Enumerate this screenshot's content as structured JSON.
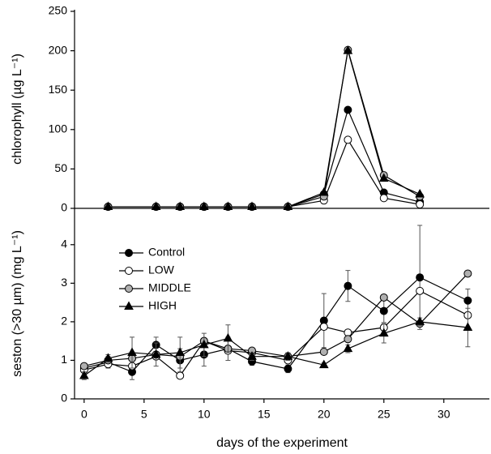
{
  "chart_data": [
    {
      "type": "line",
      "ylabel": "chlorophyll (µg L⁻¹)",
      "x": [
        2,
        6,
        8,
        10,
        12,
        14,
        17,
        20,
        22,
        25,
        28
      ],
      "xlim": [
        -0.8,
        33.8
      ],
      "ylim": [
        0,
        250
      ],
      "yticks": [
        0,
        50,
        100,
        150,
        200,
        250
      ],
      "series": [
        {
          "name": "Control",
          "color": "#000000",
          "marker": "circle",
          "values": [
            2,
            2,
            2,
            2,
            2,
            2,
            2,
            18,
            125,
            20,
            8
          ]
        },
        {
          "name": "LOW",
          "color": "#ffffff",
          "marker": "circle",
          "values": [
            2,
            2,
            2,
            2,
            2,
            2,
            2,
            10,
            87,
            13,
            5
          ]
        },
        {
          "name": "MIDDLE",
          "color": "#b0b0b0",
          "marker": "circle",
          "values": [
            2,
            2,
            2,
            2,
            2,
            2,
            2,
            15,
            201,
            42,
            15
          ]
        },
        {
          "name": "HIGH",
          "color": "#000000",
          "marker": "triangle",
          "values": [
            2,
            2,
            2,
            2,
            2,
            2,
            2,
            20,
            200,
            38,
            18
          ]
        }
      ]
    },
    {
      "type": "line",
      "ylabel": "seston (>30 µm) (mg L⁻¹)",
      "xlabel": "days of the experiment",
      "x": [
        0,
        2,
        4,
        6,
        8,
        10,
        12,
        14,
        17,
        20,
        22,
        25,
        28,
        32
      ],
      "xlim": [
        -0.8,
        33.8
      ],
      "xticks": [
        0,
        5,
        10,
        15,
        20,
        25,
        30
      ],
      "ylim": [
        0,
        4.9
      ],
      "yticks": [
        0,
        1,
        2,
        3,
        4
      ],
      "legend": "upper left",
      "series": [
        {
          "name": "Control",
          "color": "#000000",
          "marker": "circle",
          "values": [
            0.8,
            0.95,
            0.7,
            1.4,
            1.0,
            1.15,
            1.3,
            0.97,
            0.78,
            2.03,
            2.93,
            2.28,
            3.15,
            2.55
          ],
          "errors": [
            0.1,
            0.15,
            0.2,
            0.2,
            0.3,
            0.3,
            0.3,
            0.1,
            0.1,
            0.7,
            0.4,
            0.3,
            1.35,
            0.3
          ]
        },
        {
          "name": "LOW",
          "color": "#ffffff",
          "marker": "circle",
          "values": [
            0.75,
            0.9,
            0.85,
            1.1,
            0.6,
            1.5,
            1.25,
            1.2,
            1.0,
            1.87,
            1.72,
            1.85,
            2.8,
            2.17
          ]
        },
        {
          "name": "MIDDLE",
          "color": "#b0b0b0",
          "marker": "circle",
          "values": [
            0.85,
            1.0,
            1.05,
            1.15,
            1.1,
            1.5,
            1.3,
            1.25,
            1.1,
            1.22,
            1.55,
            2.63,
            1.95,
            3.25
          ]
        },
        {
          "name": "HIGH",
          "color": "#000000",
          "marker": "triangle",
          "values": [
            0.6,
            1.05,
            1.2,
            1.15,
            1.2,
            1.4,
            1.57,
            1.1,
            1.1,
            0.88,
            1.3,
            1.7,
            2.0,
            1.85
          ],
          "errors": [
            0.1,
            0.1,
            0.4,
            0.3,
            0.4,
            0.3,
            0.35,
            0.1,
            0.1,
            0.05,
            0.1,
            0.25,
            0.1,
            0.5
          ]
        }
      ]
    }
  ]
}
